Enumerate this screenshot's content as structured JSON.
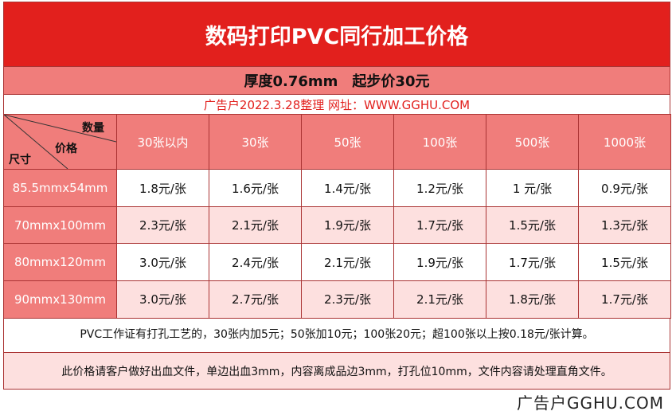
{
  "title": "数码打印PVC同行加工价格",
  "subtitle": "厚度0.76mm　起步价30元",
  "note": "广告户2022.3.28整理 网址：WWW.GGHU.COM",
  "table": {
    "corner": {
      "quantity": "数量",
      "price": "价格",
      "size": "尺寸"
    },
    "columns": [
      "30张以内",
      "30张",
      "50张",
      "100张",
      "500张",
      "1000张"
    ],
    "rows": [
      {
        "size": "85.5mmx54mm",
        "prices": [
          "1.8元/张",
          "1.6元/张",
          "1.4元/张",
          "1.2元/张",
          "1 元/张",
          "0.9元/张"
        ]
      },
      {
        "size": "70mmx100mm",
        "prices": [
          "2.3元/张",
          "2.1元/张",
          "1.9元/张",
          "1.7元/张",
          "1.5元/张",
          "1.3元/张"
        ]
      },
      {
        "size": "80mmx120mm",
        "prices": [
          "3.0元/张",
          "2.4元/张",
          "2.1元/张",
          "1.9元/张",
          "1.7元/张",
          "1.5元/张"
        ]
      },
      {
        "size": "90mmx130mm",
        "prices": [
          "3.0元/张",
          "2.7元/张",
          "2.3元/张",
          "2.1元/张",
          "1.8元/张",
          "1.7元/张"
        ]
      }
    ]
  },
  "footnotes": [
    "PVC工作证有打孔工艺的，30张内加5元；50张加10元；100张20元；超100张以上按0.18元/张计算。",
    "此价格请客户做好出血文件，单边出血3mm，内容离成品边3mm，打孔位10mm，文件内容请处理直角文件。"
  ],
  "watermark": "广告户GGHU.COM"
}
